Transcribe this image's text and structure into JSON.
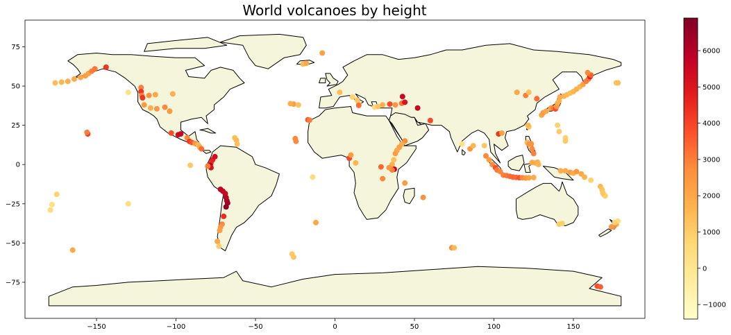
{
  "chart_data": {
    "type": "scatter",
    "title": "World volcanoes by height",
    "xlabel": "",
    "ylabel": "",
    "xlim": [
      -195,
      195
    ],
    "ylim": [
      -98,
      92
    ],
    "x_ticks": [
      -150,
      -100,
      -50,
      0,
      50,
      100,
      150
    ],
    "y_ticks": [
      75,
      50,
      25,
      0,
      -25,
      -50,
      -75
    ],
    "grid": false,
    "land_color": "#f5f5dc",
    "border_color": "#000000",
    "colorbar": {
      "colormap": "YlOrRd",
      "min": -1400,
      "max": 6900,
      "ticks": [
        6000,
        5000,
        4000,
        3000,
        2000,
        1000,
        0,
        -1000
      ],
      "tick_labels": [
        "6000",
        "5000",
        "4000",
        "3000",
        "2000",
        "1000",
        "0",
        "−1000"
      ],
      "placement": "right"
    },
    "points": [
      {
        "lon": -176,
        "lat": 52,
        "h": 1400
      },
      {
        "lon": -172,
        "lat": 52.5,
        "h": 1600
      },
      {
        "lon": -168,
        "lat": 53,
        "h": 1800
      },
      {
        "lon": -164,
        "lat": 54.5,
        "h": 2000
      },
      {
        "lon": -160,
        "lat": 55.5,
        "h": 2100
      },
      {
        "lon": -157,
        "lat": 56.5,
        "h": 2300
      },
      {
        "lon": -155,
        "lat": 58,
        "h": 2200
      },
      {
        "lon": -153,
        "lat": 59.5,
        "h": 3000
      },
      {
        "lon": -151,
        "lat": 61,
        "h": 3100
      },
      {
        "lon": -144,
        "lat": 62,
        "h": 4300
      },
      {
        "lon": -130,
        "lat": 46,
        "h": 200
      },
      {
        "lon": -122,
        "lat": 49,
        "h": 3000
      },
      {
        "lon": -122,
        "lat": 46.5,
        "h": 4300
      },
      {
        "lon": -121.5,
        "lat": 44,
        "h": 3000
      },
      {
        "lon": -121,
        "lat": 42.5,
        "h": 4300
      },
      {
        "lon": -117,
        "lat": 44,
        "h": 2600
      },
      {
        "lon": -113,
        "lat": 44.5,
        "h": 2000
      },
      {
        "lon": -107,
        "lat": 36.5,
        "h": 2800
      },
      {
        "lon": -112,
        "lat": 35.5,
        "h": 2500
      },
      {
        "lon": -120,
        "lat": 38,
        "h": 2400
      },
      {
        "lon": -116,
        "lat": 36,
        "h": 1800
      },
      {
        "lon": -104,
        "lat": 34,
        "h": 2400
      },
      {
        "lon": -102,
        "lat": 45,
        "h": 1800
      },
      {
        "lon": -103,
        "lat": 20,
        "h": 3800
      },
      {
        "lon": -98.6,
        "lat": 19,
        "h": 5400
      },
      {
        "lon": -97,
        "lat": 19.5,
        "h": 5600
      },
      {
        "lon": -93,
        "lat": 17,
        "h": 2800
      },
      {
        "lon": -91.5,
        "lat": 14.7,
        "h": 4200
      },
      {
        "lon": -90,
        "lat": 14,
        "h": 3700
      },
      {
        "lon": -88,
        "lat": 13.5,
        "h": 2500
      },
      {
        "lon": -86,
        "lat": 12.5,
        "h": 1600
      },
      {
        "lon": -85,
        "lat": 11,
        "h": 1900
      },
      {
        "lon": -84,
        "lat": 10,
        "h": 3300
      },
      {
        "lon": -155.5,
        "lat": 19.5,
        "h": 4200
      },
      {
        "lon": -156,
        "lat": 20.5,
        "h": 3000
      },
      {
        "lon": -91,
        "lat": -0.5,
        "h": 1100
      },
      {
        "lon": -78,
        "lat": 1,
        "h": 4200
      },
      {
        "lon": -78.5,
        "lat": -0.5,
        "h": 5900
      },
      {
        "lon": -78,
        "lat": -2,
        "h": 5200
      },
      {
        "lon": -77,
        "lat": 3,
        "h": 4700
      },
      {
        "lon": -75.5,
        "lat": 5,
        "h": 5300
      },
      {
        "lon": -80,
        "lat": -1,
        "h": 3000
      },
      {
        "lon": -72,
        "lat": -15.8,
        "h": 5800
      },
      {
        "lon": -70.5,
        "lat": -17,
        "h": 5700
      },
      {
        "lon": -69,
        "lat": -18.5,
        "h": 5500
      },
      {
        "lon": -68.5,
        "lat": -21,
        "h": 5900
      },
      {
        "lon": -68,
        "lat": -23,
        "h": 6000
      },
      {
        "lon": -67.5,
        "lat": -24.5,
        "h": 6300
      },
      {
        "lon": -68.5,
        "lat": -27,
        "h": 6700
      },
      {
        "lon": -70,
        "lat": -33,
        "h": 4500
      },
      {
        "lon": -71,
        "lat": -38,
        "h": 2800
      },
      {
        "lon": -72,
        "lat": -40,
        "h": 2400
      },
      {
        "lon": -72.5,
        "lat": -42,
        "h": 2200
      },
      {
        "lon": -74,
        "lat": -49,
        "h": 2000
      },
      {
        "lon": -73,
        "lat": -52,
        "h": 1000
      },
      {
        "lon": -63,
        "lat": 17,
        "h": 1400
      },
      {
        "lon": -62,
        "lat": 15.5,
        "h": 1500
      },
      {
        "lon": -61.5,
        "lat": 13,
        "h": 1300
      },
      {
        "lon": -179,
        "lat": -29,
        "h": 500
      },
      {
        "lon": -178,
        "lat": -25.5,
        "h": 300
      },
      {
        "lon": -175,
        "lat": -19,
        "h": 800
      },
      {
        "lon": -130,
        "lat": -25,
        "h": 400
      },
      {
        "lon": -165,
        "lat": -54.5,
        "h": 2000
      },
      {
        "lon": -26,
        "lat": 38.5,
        "h": 2300
      },
      {
        "lon": -23,
        "lat": 38,
        "h": 1300
      },
      {
        "lon": -28,
        "lat": 38.8,
        "h": 1800
      },
      {
        "lon": -17,
        "lat": 28.5,
        "h": 3700
      },
      {
        "lon": -16,
        "lat": 28.3,
        "h": 3000
      },
      {
        "lon": -25,
        "lat": 16.5,
        "h": 2800
      },
      {
        "lon": -24.5,
        "lat": 14.8,
        "h": 2800
      },
      {
        "lon": -20,
        "lat": 64,
        "h": 1500
      },
      {
        "lon": -18,
        "lat": 64.5,
        "h": 2000
      },
      {
        "lon": -8,
        "lat": 71,
        "h": 2200
      },
      {
        "lon": -14,
        "lat": -8,
        "h": 500
      },
      {
        "lon": -12,
        "lat": -37,
        "h": 2000
      },
      {
        "lon": -27,
        "lat": -57,
        "h": 1100
      },
      {
        "lon": -26,
        "lat": -59,
        "h": 1200
      },
      {
        "lon": 3,
        "lat": 46,
        "h": 1400
      },
      {
        "lon": 11,
        "lat": 43,
        "h": 800
      },
      {
        "lon": 14,
        "lat": 41,
        "h": 1200
      },
      {
        "lon": 15,
        "lat": 38.5,
        "h": 1000
      },
      {
        "lon": 15,
        "lat": 37.7,
        "h": 3300
      },
      {
        "lon": 25,
        "lat": 36.5,
        "h": 600
      },
      {
        "lon": 27,
        "lat": 37,
        "h": 1200
      },
      {
        "lon": 30,
        "lat": 38,
        "h": 1800
      },
      {
        "lon": 34.5,
        "lat": 38.5,
        "h": 3900
      },
      {
        "lon": 38,
        "lat": 38,
        "h": 2500
      },
      {
        "lon": 42,
        "lat": 39,
        "h": 3200
      },
      {
        "lon": 44,
        "lat": 39.7,
        "h": 5100
      },
      {
        "lon": 42.5,
        "lat": 43.3,
        "h": 5600
      },
      {
        "lon": 52,
        "lat": 36,
        "h": 5600
      },
      {
        "lon": 60,
        "lat": 28,
        "h": 3900
      },
      {
        "lon": 44,
        "lat": 15,
        "h": 2800
      },
      {
        "lon": 42,
        "lat": 13,
        "h": 1800
      },
      {
        "lon": 40.5,
        "lat": 11,
        "h": 2200
      },
      {
        "lon": 39,
        "lat": 9,
        "h": 2000
      },
      {
        "lon": 38,
        "lat": 7,
        "h": 2300
      },
      {
        "lon": 37,
        "lat": 3,
        "h": 1300
      },
      {
        "lon": 36,
        "lat": 0,
        "h": 1700
      },
      {
        "lon": 37.3,
        "lat": -3,
        "h": 5800
      },
      {
        "lon": 36,
        "lat": -3.5,
        "h": 2900
      },
      {
        "lon": 34,
        "lat": -2,
        "h": 2500
      },
      {
        "lon": 29,
        "lat": -1.5,
        "h": 3400
      },
      {
        "lon": 30,
        "lat": -9,
        "h": 2800
      },
      {
        "lon": 44,
        "lat": -11.8,
        "h": 2300
      },
      {
        "lon": 55.5,
        "lat": -21,
        "h": 2600
      },
      {
        "lon": 9,
        "lat": 4,
        "h": 4000
      },
      {
        "lon": 10,
        "lat": 6,
        "h": 2300
      },
      {
        "lon": 13,
        "lat": 1,
        "h": 1600
      },
      {
        "lon": 73.5,
        "lat": -53,
        "h": 2700
      },
      {
        "lon": 75,
        "lat": -53,
        "h": 1500
      },
      {
        "lon": 80,
        "lat": 13,
        "h": 300
      },
      {
        "lon": 85,
        "lat": 10,
        "h": 2500
      },
      {
        "lon": 87,
        "lat": 12,
        "h": 1600
      },
      {
        "lon": 94,
        "lat": 12,
        "h": 1200
      },
      {
        "lon": 95,
        "lat": 5.5,
        "h": 2800
      },
      {
        "lon": 97,
        "lat": 3,
        "h": 2300
      },
      {
        "lon": 99,
        "lat": 0,
        "h": 2800
      },
      {
        "lon": 101,
        "lat": -2,
        "h": 3800
      },
      {
        "lon": 102,
        "lat": -3.5,
        "h": 3100
      },
      {
        "lon": 104,
        "lat": -4.5,
        "h": 2800
      },
      {
        "lon": 106,
        "lat": -6.8,
        "h": 3000
      },
      {
        "lon": 108,
        "lat": -7,
        "h": 3100
      },
      {
        "lon": 110,
        "lat": -7.5,
        "h": 3300
      },
      {
        "lon": 112,
        "lat": -8,
        "h": 3400
      },
      {
        "lon": 114,
        "lat": -8.2,
        "h": 3300
      },
      {
        "lon": 116,
        "lat": -8.4,
        "h": 3700
      },
      {
        "lon": 118,
        "lat": -8.4,
        "h": 2800
      },
      {
        "lon": 120,
        "lat": -8.6,
        "h": 2400
      },
      {
        "lon": 122,
        "lat": -8.5,
        "h": 2200
      },
      {
        "lon": 125,
        "lat": -8.3,
        "h": 1900
      },
      {
        "lon": 103,
        "lat": 19.5,
        "h": 4300
      },
      {
        "lon": 105,
        "lat": 20,
        "h": 2200
      },
      {
        "lon": 121,
        "lat": 14,
        "h": 1600
      },
      {
        "lon": 122,
        "lat": 13,
        "h": 2500
      },
      {
        "lon": 123.5,
        "lat": 13.2,
        "h": 2500
      },
      {
        "lon": 125,
        "lat": 7,
        "h": 3000
      },
      {
        "lon": 124,
        "lat": 10,
        "h": 2800
      },
      {
        "lon": 126,
        "lat": 1,
        "h": 1800
      },
      {
        "lon": 127.5,
        "lat": 1.5,
        "h": 1700
      },
      {
        "lon": 128,
        "lat": 0,
        "h": 1600
      },
      {
        "lon": 124,
        "lat": 1.3,
        "h": 2000
      },
      {
        "lon": 122,
        "lat": 24,
        "h": 1200
      },
      {
        "lon": 121.5,
        "lat": 25,
        "h": 1600
      },
      {
        "lon": 130,
        "lat": 31.5,
        "h": 2100
      },
      {
        "lon": 131,
        "lat": 33,
        "h": 2300
      },
      {
        "lon": 133,
        "lat": 34,
        "h": 2000
      },
      {
        "lon": 136,
        "lat": 36,
        "h": 2400
      },
      {
        "lon": 137.5,
        "lat": 35.9,
        "h": 3000
      },
      {
        "lon": 138.7,
        "lat": 35.4,
        "h": 3800
      },
      {
        "lon": 139.5,
        "lat": 37,
        "h": 2500
      },
      {
        "lon": 140,
        "lat": 39,
        "h": 2000
      },
      {
        "lon": 141,
        "lat": 40.5,
        "h": 1700
      },
      {
        "lon": 141.5,
        "lat": 43,
        "h": 1900
      },
      {
        "lon": 144,
        "lat": 43.5,
        "h": 1700
      },
      {
        "lon": 146,
        "lat": 44.5,
        "h": 1500
      },
      {
        "lon": 148,
        "lat": 45.5,
        "h": 1400
      },
      {
        "lon": 150,
        "lat": 46.5,
        "h": 1600
      },
      {
        "lon": 152,
        "lat": 48,
        "h": 1800
      },
      {
        "lon": 154,
        "lat": 49.5,
        "h": 1600
      },
      {
        "lon": 156,
        "lat": 51,
        "h": 2200
      },
      {
        "lon": 158,
        "lat": 53,
        "h": 3000
      },
      {
        "lon": 159.5,
        "lat": 54.5,
        "h": 3200
      },
      {
        "lon": 160.5,
        "lat": 56,
        "h": 4800
      },
      {
        "lon": 161,
        "lat": 57,
        "h": 3500
      },
      {
        "lon": 159,
        "lat": 58.5,
        "h": 2800
      },
      {
        "lon": 127,
        "lat": 42,
        "h": 3300
      },
      {
        "lon": 120,
        "lat": 44,
        "h": 3000
      },
      {
        "lon": 122,
        "lat": 46,
        "h": 1400
      },
      {
        "lon": 114.5,
        "lat": 46,
        "h": 2000
      },
      {
        "lon": 140,
        "lat": 25,
        "h": 800
      },
      {
        "lon": 141,
        "lat": 21,
        "h": 1000
      },
      {
        "lon": 145,
        "lat": 17,
        "h": 900
      },
      {
        "lon": 145,
        "lat": 15,
        "h": 1100
      },
      {
        "lon": 142,
        "lat": -4,
        "h": 1800
      },
      {
        "lon": 145,
        "lat": -4,
        "h": 1900
      },
      {
        "lon": 148,
        "lat": -5,
        "h": 2300
      },
      {
        "lon": 150,
        "lat": -5.5,
        "h": 1800
      },
      {
        "lon": 152,
        "lat": -4.5,
        "h": 2400
      },
      {
        "lon": 155,
        "lat": -6,
        "h": 2000
      },
      {
        "lon": 157,
        "lat": -8,
        "h": 1700
      },
      {
        "lon": 167,
        "lat": -14,
        "h": 1500
      },
      {
        "lon": 168,
        "lat": -16,
        "h": 1300
      },
      {
        "lon": 169,
        "lat": -19,
        "h": 1100
      },
      {
        "lon": 170,
        "lat": -20,
        "h": 900
      },
      {
        "lon": 177,
        "lat": -38,
        "h": 2000
      },
      {
        "lon": 175.5,
        "lat": -39.3,
        "h": 2800
      },
      {
        "lon": 174,
        "lat": -39.7,
        "h": 2500
      },
      {
        "lon": 178,
        "lat": -36,
        "h": 500
      },
      {
        "lon": 176,
        "lat": -37,
        "h": 800
      },
      {
        "lon": 165,
        "lat": -77.5,
        "h": 3800
      },
      {
        "lon": 167,
        "lat": -78,
        "h": 3500
      },
      {
        "lon": 178,
        "lat": 52,
        "h": 1500
      },
      {
        "lon": 177,
        "lat": 52,
        "h": 1300
      },
      {
        "lon": 141,
        "lat": -38,
        "h": 1000
      },
      {
        "lon": 143,
        "lat": -37.5,
        "h": 900
      },
      {
        "lon": 168.5,
        "lat": -18,
        "h": 1200
      },
      {
        "lon": 161,
        "lat": -10,
        "h": 800
      }
    ]
  }
}
